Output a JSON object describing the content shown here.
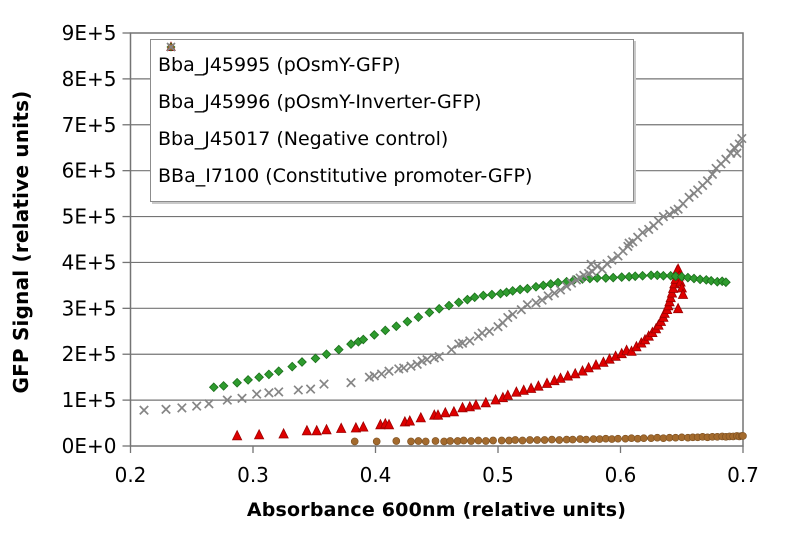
{
  "chart_data": {
    "type": "scatter",
    "title": "",
    "xlabel": "Absorbance 600nm (relative units)",
    "ylabel": "GFP Signal (relative units)",
    "xlim": [
      0.2,
      0.7
    ],
    "ylim": [
      0,
      900000
    ],
    "grid": "horizontal",
    "legend_position": "top-left-inside",
    "x_tick_values": [
      0.2,
      0.3,
      0.4,
      0.5,
      0.6,
      0.7
    ],
    "x_tick_labels": [
      "0.2",
      "0.3",
      "0.4",
      "0.5",
      "0.6",
      "0.7"
    ],
    "y_tick_values": [
      0,
      100000,
      200000,
      300000,
      400000,
      500000,
      600000,
      700000,
      800000,
      900000
    ],
    "y_tick_labels": [
      "0E+0",
      "1E+5",
      "2E+5",
      "3E+5",
      "4E+5",
      "5E+5",
      "6E+5",
      "7E+5",
      "8E+5",
      "9E+5"
    ],
    "series": [
      {
        "name": "Bba_J45995 (pOsmY-GFP)",
        "marker": "triangle",
        "color": "#DE0000",
        "edge": "#9E0000",
        "points": [
          [
            0.287,
            22000
          ],
          [
            0.305,
            24000
          ],
          [
            0.325,
            26000
          ],
          [
            0.344,
            33000
          ],
          [
            0.352,
            33000
          ],
          [
            0.36,
            35000
          ],
          [
            0.372,
            38000
          ],
          [
            0.384,
            39000
          ],
          [
            0.39,
            41000
          ],
          [
            0.404,
            46000
          ],
          [
            0.408,
            48000
          ],
          [
            0.411,
            46000
          ],
          [
            0.424,
            52000
          ],
          [
            0.428,
            54000
          ],
          [
            0.437,
            61000
          ],
          [
            0.448,
            67000
          ],
          [
            0.451,
            67000
          ],
          [
            0.457,
            72000
          ],
          [
            0.464,
            74000
          ],
          [
            0.471,
            83000
          ],
          [
            0.477,
            85000
          ],
          [
            0.482,
            89000
          ],
          [
            0.49,
            94000
          ],
          [
            0.498,
            100000
          ],
          [
            0.504,
            105000
          ],
          [
            0.508,
            110000
          ],
          [
            0.515,
            117000
          ],
          [
            0.521,
            121000
          ],
          [
            0.527,
            125000
          ],
          [
            0.533,
            130000
          ],
          [
            0.54,
            136000
          ],
          [
            0.546,
            142000
          ],
          [
            0.551,
            147000
          ],
          [
            0.557,
            152000
          ],
          [
            0.563,
            157000
          ],
          [
            0.569,
            163000
          ],
          [
            0.574,
            170000
          ],
          [
            0.58,
            176000
          ],
          [
            0.586,
            182000
          ],
          [
            0.591,
            189000
          ],
          [
            0.596,
            195000
          ],
          [
            0.601,
            201000
          ],
          [
            0.605,
            208000
          ],
          [
            0.609,
            206000
          ],
          [
            0.613,
            216000
          ],
          [
            0.617,
            224000
          ],
          [
            0.62,
            231000
          ],
          [
            0.623,
            239000
          ],
          [
            0.626,
            247000
          ],
          [
            0.629,
            255000
          ],
          [
            0.631,
            263000
          ],
          [
            0.633,
            271000
          ],
          [
            0.635,
            280000
          ],
          [
            0.636,
            289000
          ],
          [
            0.638,
            297000
          ],
          [
            0.639,
            305000
          ],
          [
            0.64,
            314000
          ],
          [
            0.641,
            323000
          ],
          [
            0.642,
            333000
          ],
          [
            0.643,
            343000
          ],
          [
            0.644,
            353000
          ],
          [
            0.645,
            363000
          ],
          [
            0.645,
            373000
          ],
          [
            0.646,
            381000
          ],
          [
            0.647,
            385000
          ],
          [
            0.648,
            370000
          ],
          [
            0.649,
            357000
          ],
          [
            0.65,
            344000
          ],
          [
            0.651,
            330000
          ],
          [
            0.647,
            299000
          ]
        ]
      },
      {
        "name": "Bba_J45996 (pOsmY-Inverter-GFP)",
        "marker": "diamond",
        "color": "#2E9B2E",
        "edge": "#1B6E1B",
        "points": [
          [
            0.268,
            128000
          ],
          [
            0.276,
            131000
          ],
          [
            0.287,
            138000
          ],
          [
            0.296,
            144000
          ],
          [
            0.305,
            150000
          ],
          [
            0.313,
            156000
          ],
          [
            0.321,
            163000
          ],
          [
            0.332,
            173000
          ],
          [
            0.34,
            183000
          ],
          [
            0.351,
            191000
          ],
          [
            0.36,
            200000
          ],
          [
            0.37,
            210000
          ],
          [
            0.38,
            222000
          ],
          [
            0.386,
            227000
          ],
          [
            0.39,
            232000
          ],
          [
            0.399,
            242000
          ],
          [
            0.408,
            252000
          ],
          [
            0.417,
            261000
          ],
          [
            0.426,
            271000
          ],
          [
            0.435,
            281000
          ],
          [
            0.444,
            291000
          ],
          [
            0.452,
            299000
          ],
          [
            0.46,
            306000
          ],
          [
            0.468,
            313000
          ],
          [
            0.475,
            319000
          ],
          [
            0.481,
            324000
          ],
          [
            0.488,
            328000
          ],
          [
            0.495,
            330000
          ],
          [
            0.502,
            332000
          ],
          [
            0.507,
            335000
          ],
          [
            0.512,
            338000
          ],
          [
            0.518,
            341000
          ],
          [
            0.524,
            343000
          ],
          [
            0.531,
            347000
          ],
          [
            0.537,
            350000
          ],
          [
            0.543,
            353000
          ],
          [
            0.549,
            356000
          ],
          [
            0.556,
            358000
          ],
          [
            0.562,
            362000
          ],
          [
            0.569,
            364000
          ],
          [
            0.575,
            365000
          ],
          [
            0.581,
            366000
          ],
          [
            0.588,
            366000
          ],
          [
            0.594,
            367000
          ],
          [
            0.601,
            368000
          ],
          [
            0.607,
            369000
          ],
          [
            0.612,
            370000
          ],
          [
            0.618,
            371000
          ],
          [
            0.625,
            372000
          ],
          [
            0.63,
            372000
          ],
          [
            0.635,
            371000
          ],
          [
            0.641,
            371000
          ],
          [
            0.645,
            370000
          ],
          [
            0.65,
            369000
          ],
          [
            0.655,
            367000
          ],
          [
            0.66,
            365000
          ],
          [
            0.665,
            363000
          ],
          [
            0.67,
            362000
          ],
          [
            0.674,
            360000
          ],
          [
            0.679,
            358000
          ],
          [
            0.683,
            359000
          ],
          [
            0.686,
            357000
          ]
        ]
      },
      {
        "name": "Bba_J45017 (Negative control)",
        "marker": "circle",
        "color": "#A36A2D",
        "edge": "#7A4E20",
        "points": [
          [
            0.383,
            10000
          ],
          [
            0.401,
            10000
          ],
          [
            0.417,
            11000
          ],
          [
            0.429,
            10000
          ],
          [
            0.435,
            11000
          ],
          [
            0.441,
            10000
          ],
          [
            0.449,
            11000
          ],
          [
            0.456,
            10000
          ],
          [
            0.461,
            11000
          ],
          [
            0.467,
            11000
          ],
          [
            0.472,
            12000
          ],
          [
            0.478,
            11000
          ],
          [
            0.484,
            12000
          ],
          [
            0.49,
            11000
          ],
          [
            0.496,
            12000
          ],
          [
            0.503,
            12000
          ],
          [
            0.509,
            12000
          ],
          [
            0.514,
            13000
          ],
          [
            0.52,
            12000
          ],
          [
            0.526,
            13000
          ],
          [
            0.532,
            13000
          ],
          [
            0.538,
            13000
          ],
          [
            0.544,
            14000
          ],
          [
            0.55,
            13000
          ],
          [
            0.556,
            14000
          ],
          [
            0.561,
            14000
          ],
          [
            0.567,
            15000
          ],
          [
            0.572,
            14000
          ],
          [
            0.578,
            15000
          ],
          [
            0.583,
            15000
          ],
          [
            0.588,
            16000
          ],
          [
            0.593,
            15000
          ],
          [
            0.598,
            16000
          ],
          [
            0.604,
            16000
          ],
          [
            0.609,
            17000
          ],
          [
            0.614,
            16000
          ],
          [
            0.619,
            17000
          ],
          [
            0.625,
            17000
          ],
          [
            0.63,
            18000
          ],
          [
            0.635,
            17000
          ],
          [
            0.64,
            18000
          ],
          [
            0.645,
            18000
          ],
          [
            0.65,
            19000
          ],
          [
            0.655,
            18000
          ],
          [
            0.659,
            19000
          ],
          [
            0.663,
            19000
          ],
          [
            0.667,
            20000
          ],
          [
            0.671,
            19000
          ],
          [
            0.675,
            20000
          ],
          [
            0.679,
            20000
          ],
          [
            0.683,
            21000
          ],
          [
            0.686,
            20000
          ],
          [
            0.689,
            21000
          ],
          [
            0.692,
            21000
          ],
          [
            0.695,
            22000
          ],
          [
            0.697,
            21000
          ],
          [
            0.699,
            22000
          ],
          [
            0.7,
            22000
          ]
        ]
      },
      {
        "name": "BBa_I7100 (Constitutive promoter-GFP)",
        "marker": "x",
        "color": "#858585",
        "edge": "#858585",
        "points": [
          [
            0.211,
            78000
          ],
          [
            0.229,
            80000
          ],
          [
            0.242,
            83000
          ],
          [
            0.254,
            87000
          ],
          [
            0.264,
            92000
          ],
          [
            0.279,
            100000
          ],
          [
            0.291,
            104000
          ],
          [
            0.303,
            113000
          ],
          [
            0.313,
            116000
          ],
          [
            0.321,
            118000
          ],
          [
            0.337,
            122000
          ],
          [
            0.347,
            124000
          ],
          [
            0.358,
            135000
          ],
          [
            0.38,
            138000
          ],
          [
            0.395,
            150000
          ],
          [
            0.399,
            153000
          ],
          [
            0.405,
            157000
          ],
          [
            0.411,
            163000
          ],
          [
            0.419,
            168000
          ],
          [
            0.423,
            170000
          ],
          [
            0.429,
            174000
          ],
          [
            0.434,
            178000
          ],
          [
            0.438,
            185000
          ],
          [
            0.442,
            188000
          ],
          [
            0.448,
            192000
          ],
          [
            0.452,
            195000
          ],
          [
            0.462,
            210000
          ],
          [
            0.468,
            222000
          ],
          [
            0.471,
            224000
          ],
          [
            0.477,
            229000
          ],
          [
            0.484,
            239000
          ],
          [
            0.487,
            246000
          ],
          [
            0.493,
            250000
          ],
          [
            0.5,
            260000
          ],
          [
            0.504,
            268000
          ],
          [
            0.508,
            280000
          ],
          [
            0.512,
            287000
          ],
          [
            0.519,
            297000
          ],
          [
            0.524,
            308000
          ],
          [
            0.531,
            312000
          ],
          [
            0.536,
            318000
          ],
          [
            0.541,
            327000
          ],
          [
            0.546,
            333000
          ],
          [
            0.551,
            340000
          ],
          [
            0.556,
            348000
          ],
          [
            0.56,
            355000
          ],
          [
            0.564,
            362000
          ],
          [
            0.567,
            366000
          ],
          [
            0.57,
            372000
          ],
          [
            0.574,
            376000
          ],
          [
            0.577,
            380000
          ],
          [
            0.576,
            396000
          ],
          [
            0.581,
            392000
          ],
          [
            0.585,
            385000
          ],
          [
            0.589,
            397000
          ],
          [
            0.593,
            405000
          ],
          [
            0.598,
            414000
          ],
          [
            0.602,
            425000
          ],
          [
            0.607,
            442000
          ],
          [
            0.606,
            435000
          ],
          [
            0.61,
            445000
          ],
          [
            0.614,
            455000
          ],
          [
            0.618,
            465000
          ],
          [
            0.623,
            472000
          ],
          [
            0.627,
            480000
          ],
          [
            0.631,
            490000
          ],
          [
            0.635,
            500000
          ],
          [
            0.64,
            505000
          ],
          [
            0.644,
            512000
          ],
          [
            0.647,
            516000
          ],
          [
            0.651,
            528000
          ],
          [
            0.656,
            542000
          ],
          [
            0.66,
            550000
          ],
          [
            0.663,
            558000
          ],
          [
            0.667,
            568000
          ],
          [
            0.671,
            578000
          ],
          [
            0.675,
            592000
          ],
          [
            0.678,
            605000
          ],
          [
            0.682,
            615000
          ],
          [
            0.686,
            625000
          ],
          [
            0.69,
            638000
          ],
          [
            0.693,
            650000
          ],
          [
            0.695,
            638000
          ],
          [
            0.697,
            658000
          ],
          [
            0.699,
            670000
          ]
        ]
      }
    ]
  }
}
